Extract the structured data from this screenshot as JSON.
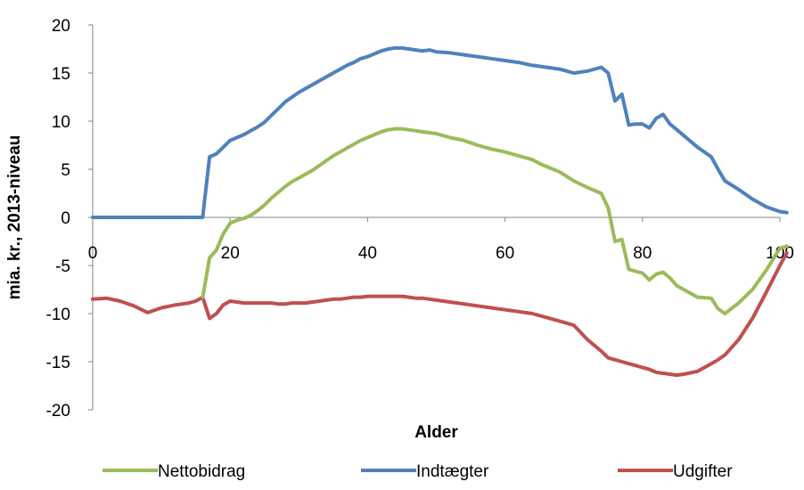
{
  "chart_data": {
    "type": "line",
    "title": "",
    "xlabel": "Alder",
    "ylabel": "mia. kr., 2013-niveau",
    "xlim": [
      0,
      100
    ],
    "ylim": [
      -20,
      20
    ],
    "xticks": [
      0,
      20,
      40,
      60,
      80,
      100
    ],
    "yticks": [
      -20,
      -15,
      -10,
      -5,
      0,
      5,
      10,
      15,
      20
    ],
    "grid": false,
    "legend": "bottom",
    "x": [
      0,
      2,
      4,
      6,
      8,
      10,
      12,
      14,
      15,
      16,
      17,
      18,
      19,
      20,
      21,
      22,
      23,
      24,
      25,
      26,
      27,
      28,
      29,
      30,
      31,
      32,
      33,
      34,
      35,
      36,
      37,
      38,
      39,
      40,
      41,
      42,
      43,
      44,
      45,
      46,
      47,
      48,
      49,
      50,
      52,
      54,
      56,
      58,
      60,
      62,
      64,
      65,
      66,
      68,
      70,
      72,
      74,
      75,
      76,
      77,
      78,
      79,
      80,
      81,
      82,
      83,
      84,
      85,
      86,
      88,
      90,
      91,
      92,
      94,
      96,
      98,
      100,
      101
    ],
    "series": [
      {
        "name": "Nettobidrag",
        "color": "#9BBB59",
        "values": [
          null,
          null,
          null,
          null,
          null,
          null,
          null,
          null,
          null,
          -8.3,
          -4.2,
          -3.4,
          -1.7,
          -0.6,
          -0.3,
          -0.1,
          0.2,
          0.7,
          1.3,
          2.0,
          2.6,
          3.2,
          3.7,
          4.1,
          4.5,
          4.9,
          5.4,
          5.9,
          6.4,
          6.8,
          7.2,
          7.6,
          8.0,
          8.3,
          8.6,
          8.9,
          9.1,
          9.2,
          9.2,
          9.1,
          9.0,
          8.9,
          8.8,
          8.7,
          8.3,
          8.0,
          7.5,
          7.1,
          6.8,
          6.4,
          6.0,
          5.6,
          5.3,
          4.7,
          3.8,
          3.1,
          2.5,
          1.0,
          -2.5,
          -2.3,
          -5.4,
          -5.6,
          -5.8,
          -6.5,
          -5.9,
          -5.7,
          -6.3,
          -7.1,
          -7.5,
          -8.3,
          -8.4,
          -9.5,
          -10.0,
          -8.9,
          -7.5,
          -5.5,
          -3.2,
          -3.0
        ]
      },
      {
        "name": "Indtægter",
        "color": "#4F81BD",
        "values": [
          0,
          0,
          0,
          0,
          0,
          0,
          0,
          0,
          0,
          0,
          6.3,
          6.6,
          7.3,
          8.0,
          8.3,
          8.6,
          9.0,
          9.4,
          9.9,
          10.6,
          11.3,
          12.0,
          12.5,
          13.0,
          13.4,
          13.8,
          14.2,
          14.6,
          15.0,
          15.4,
          15.8,
          16.1,
          16.5,
          16.7,
          17.0,
          17.3,
          17.5,
          17.6,
          17.6,
          17.5,
          17.4,
          17.3,
          17.4,
          17.2,
          17.1,
          16.9,
          16.7,
          16.5,
          16.3,
          16.1,
          15.8,
          15.7,
          15.6,
          15.4,
          15.0,
          15.2,
          15.6,
          15.0,
          12.1,
          12.8,
          9.6,
          9.7,
          9.7,
          9.3,
          10.3,
          10.7,
          9.7,
          9.1,
          8.5,
          7.3,
          6.3,
          5.0,
          3.8,
          2.9,
          1.9,
          1.1,
          0.6,
          0.5
        ]
      },
      {
        "name": "Udgifter",
        "color": "#C0504D",
        "values": [
          -8.5,
          -8.4,
          -8.7,
          -9.2,
          -9.9,
          -9.4,
          -9.1,
          -8.9,
          -8.7,
          -8.3,
          -10.5,
          -10.0,
          -9.1,
          -8.7,
          -8.8,
          -8.9,
          -8.9,
          -8.9,
          -8.9,
          -8.9,
          -9.0,
          -9.0,
          -8.9,
          -8.9,
          -8.9,
          -8.8,
          -8.7,
          -8.6,
          -8.5,
          -8.5,
          -8.4,
          -8.3,
          -8.3,
          -8.2,
          -8.2,
          -8.2,
          -8.2,
          -8.2,
          -8.2,
          -8.3,
          -8.4,
          -8.4,
          -8.5,
          -8.6,
          -8.8,
          -9.0,
          -9.2,
          -9.4,
          -9.6,
          -9.8,
          -10.0,
          -10.2,
          -10.4,
          -10.8,
          -11.2,
          -12.7,
          -13.9,
          -14.6,
          -14.8,
          -15.0,
          -15.2,
          -15.4,
          -15.6,
          -15.8,
          -16.1,
          -16.2,
          -16.3,
          -16.4,
          -16.3,
          -16.0,
          -15.2,
          -14.8,
          -14.3,
          -12.7,
          -10.5,
          -7.8,
          -5.0,
          -3.7
        ]
      }
    ]
  }
}
